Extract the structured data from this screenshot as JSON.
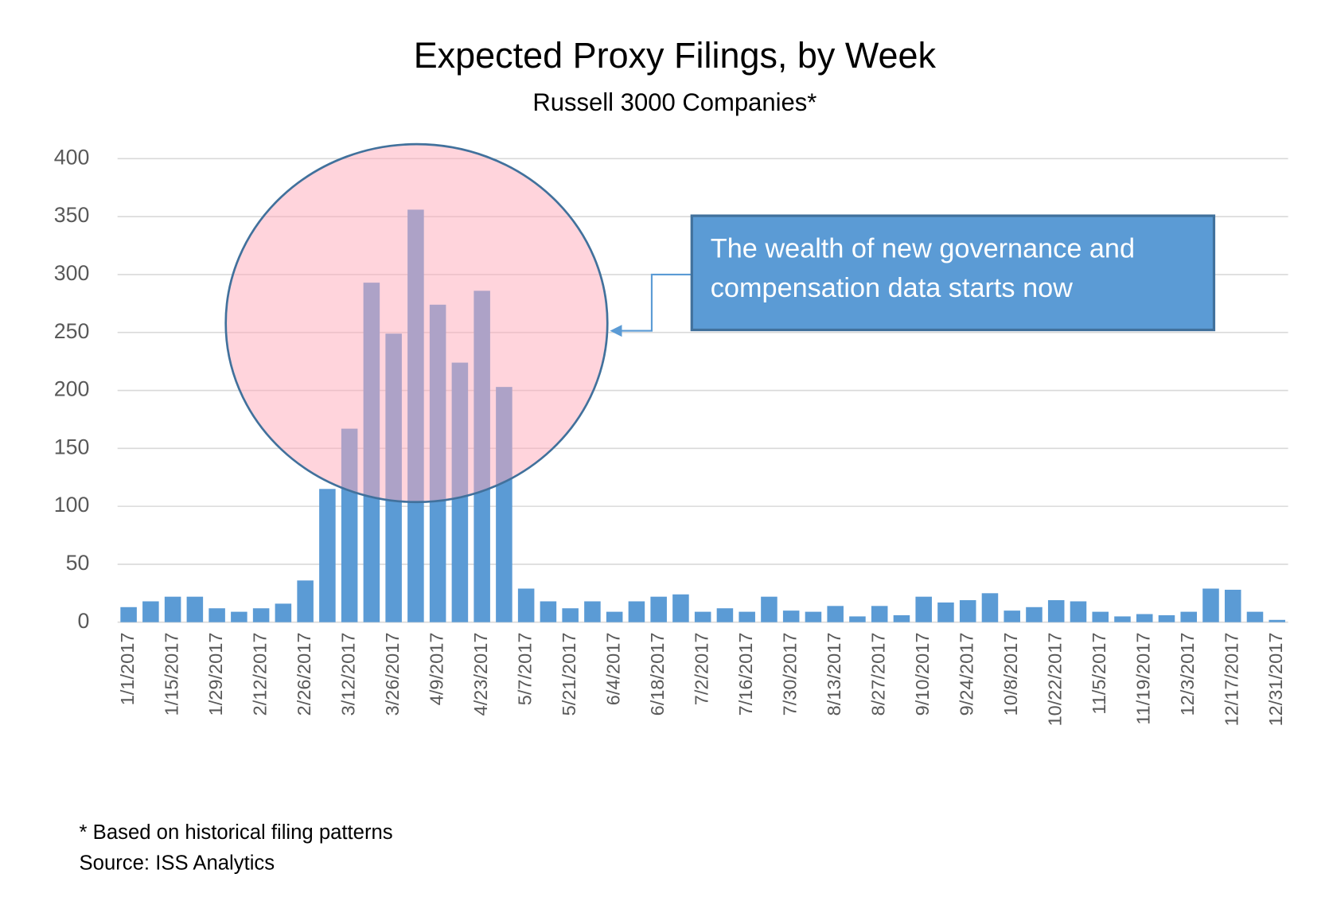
{
  "chart_data": {
    "type": "bar",
    "title": "Expected Proxy Filings, by Week",
    "subtitle": "Russell 3000 Companies*",
    "categories": [
      "1/1/2017",
      null,
      "1/15/2017",
      null,
      "1/29/2017",
      null,
      "2/12/2017",
      null,
      "2/26/2017",
      null,
      "3/12/2017",
      null,
      "3/26/2017",
      null,
      "4/9/2017",
      null,
      "4/23/2017",
      null,
      "5/7/2017",
      null,
      "5/21/2017",
      null,
      "6/4/2017",
      null,
      "6/18/2017",
      null,
      "7/2/2017",
      null,
      "7/16/2017",
      null,
      "7/30/2017",
      null,
      "8/13/2017",
      null,
      "8/27/2017",
      null,
      "9/10/2017",
      null,
      "9/24/2017",
      null,
      "10/8/2017",
      null,
      "10/22/2017",
      null,
      "11/5/2017",
      null,
      "11/19/2017",
      null,
      "12/3/2017",
      null,
      "12/17/2017",
      null,
      "12/31/2017"
    ],
    "values": [
      13,
      18,
      22,
      22,
      12,
      9,
      12,
      16,
      36,
      115,
      167,
      293,
      249,
      356,
      274,
      224,
      286,
      203,
      29,
      18,
      12,
      18,
      9,
      18,
      22,
      24,
      9,
      12,
      9,
      22,
      10,
      9,
      14,
      5,
      14,
      6,
      22,
      17,
      19,
      25,
      10,
      13,
      19,
      18,
      9,
      5,
      7,
      6,
      9,
      29,
      28,
      9,
      2
    ],
    "color": "#5b9bd5",
    "ylim": [
      0,
      400
    ],
    "yticks": [
      0,
      50,
      100,
      150,
      200,
      250,
      300,
      350,
      400
    ],
    "grid": true,
    "annotation": "The wealth of new governance and compensation data starts now",
    "footnotes": [
      "* Based on historical filing patterns",
      "Source: ISS Analytics"
    ]
  }
}
